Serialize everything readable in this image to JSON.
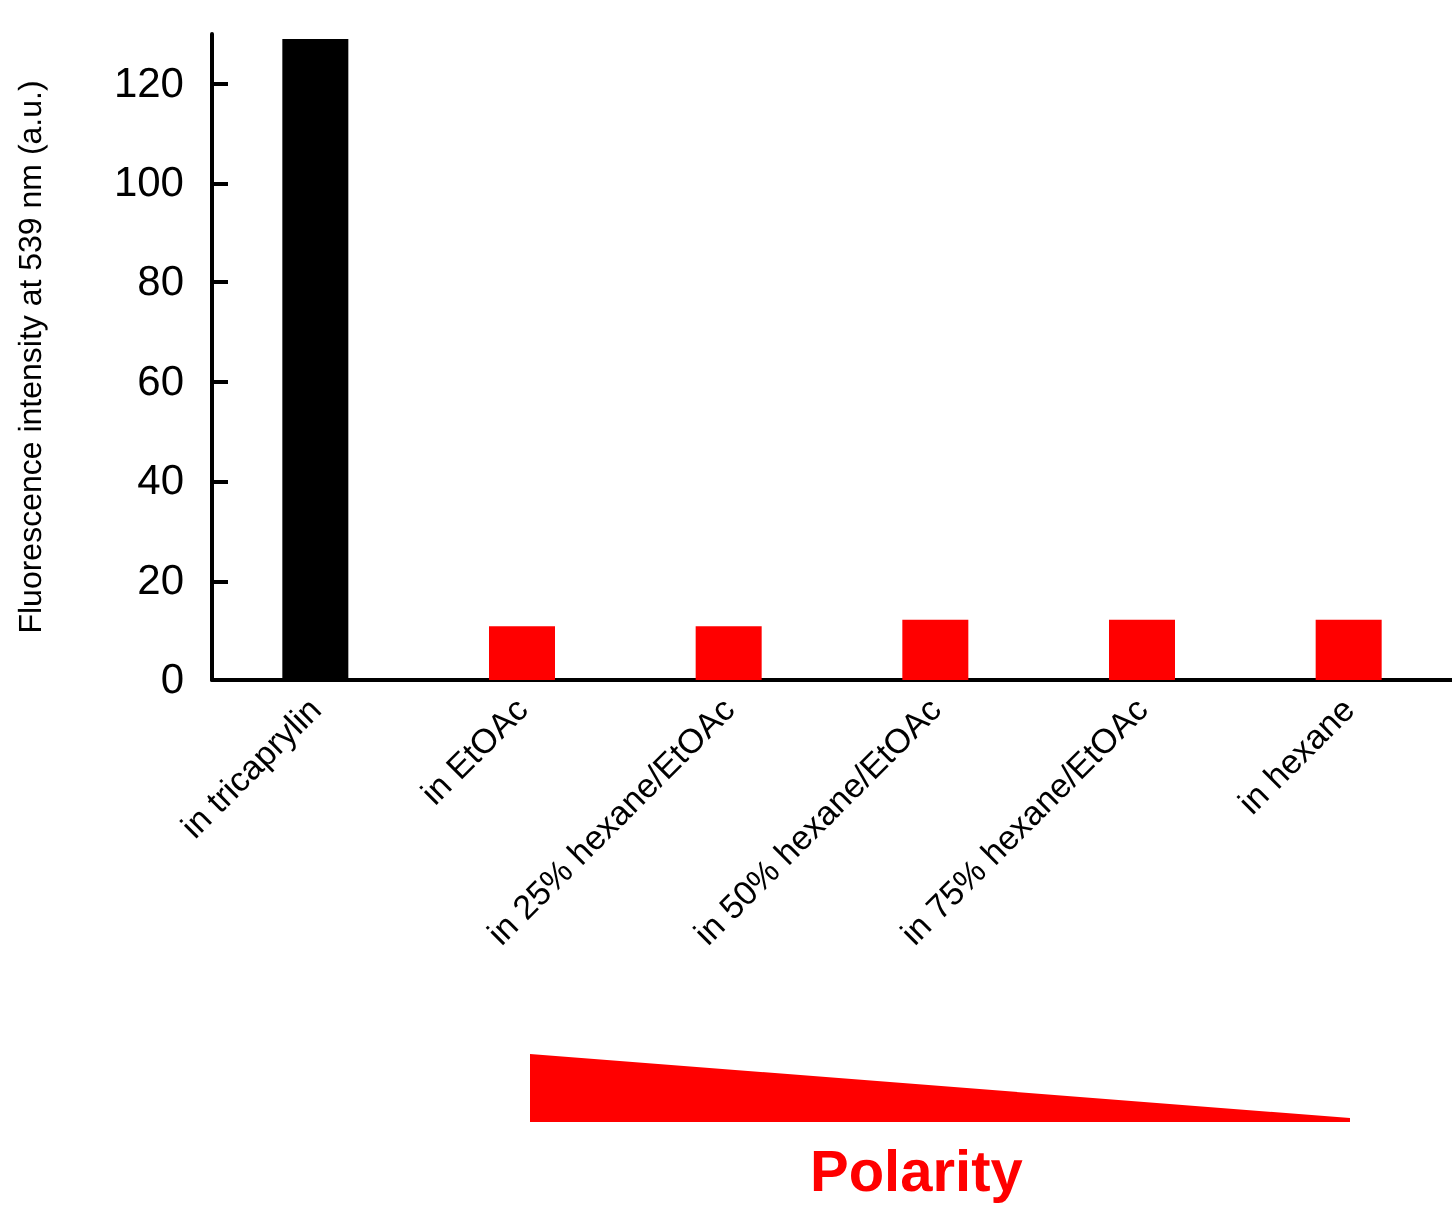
{
  "chart_data": {
    "type": "bar",
    "ylabel": "Fluorescence intensity at 539 nm (a.u.)",
    "categories": [
      "in tricaprylin",
      "in EtOAc",
      "in 25% hexane/EtOAc",
      "in 50% hexane/EtOAc",
      "in 75% hexane/EtOAc",
      "in hexane"
    ],
    "values": [
      129,
      10.8,
      10.8,
      12.1,
      12.1,
      12.1
    ],
    "colors": [
      "#000000",
      "#ff0000",
      "#ff0000",
      "#ff0000",
      "#ff0000",
      "#ff0000"
    ],
    "ylim": [
      0,
      130
    ],
    "yticks": [
      0,
      20,
      40,
      60,
      80,
      100,
      120
    ],
    "grid": false,
    "annotations": [
      "Polarity"
    ]
  }
}
